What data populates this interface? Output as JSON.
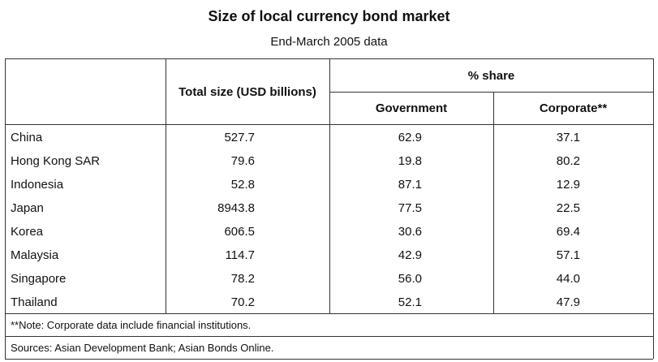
{
  "title": "Size of local currency bond market",
  "subtitle": "End-March 2005 data",
  "headers": {
    "total": "Total size (USD billions)",
    "share": "% share",
    "government": "Government",
    "corporate": "Corporate**"
  },
  "rows": [
    {
      "country": "China",
      "total": "527.7",
      "government": "62.9",
      "corporate": "37.1"
    },
    {
      "country": "Hong Kong SAR",
      "total": "79.6",
      "government": "19.8",
      "corporate": "80.2"
    },
    {
      "country": "Indonesia",
      "total": "52.8",
      "government": "87.1",
      "corporate": "12.9"
    },
    {
      "country": "Japan",
      "total": "8943.8",
      "government": "77.5",
      "corporate": "22.5"
    },
    {
      "country": "Korea",
      "total": "606.5",
      "government": "30.6",
      "corporate": "69.4"
    },
    {
      "country": "Malaysia",
      "total": "114.7",
      "government": "42.9",
      "corporate": "57.1"
    },
    {
      "country": "Singapore",
      "total": "78.2",
      "government": "56.0",
      "corporate": "44.0"
    },
    {
      "country": "Thailand",
      "total": "70.2",
      "government": "52.1",
      "corporate": "47.9"
    }
  ],
  "note": "**Note: Corporate data include financial institutions.",
  "sources": "Sources: Asian Development Bank; Asian Bonds Online."
}
